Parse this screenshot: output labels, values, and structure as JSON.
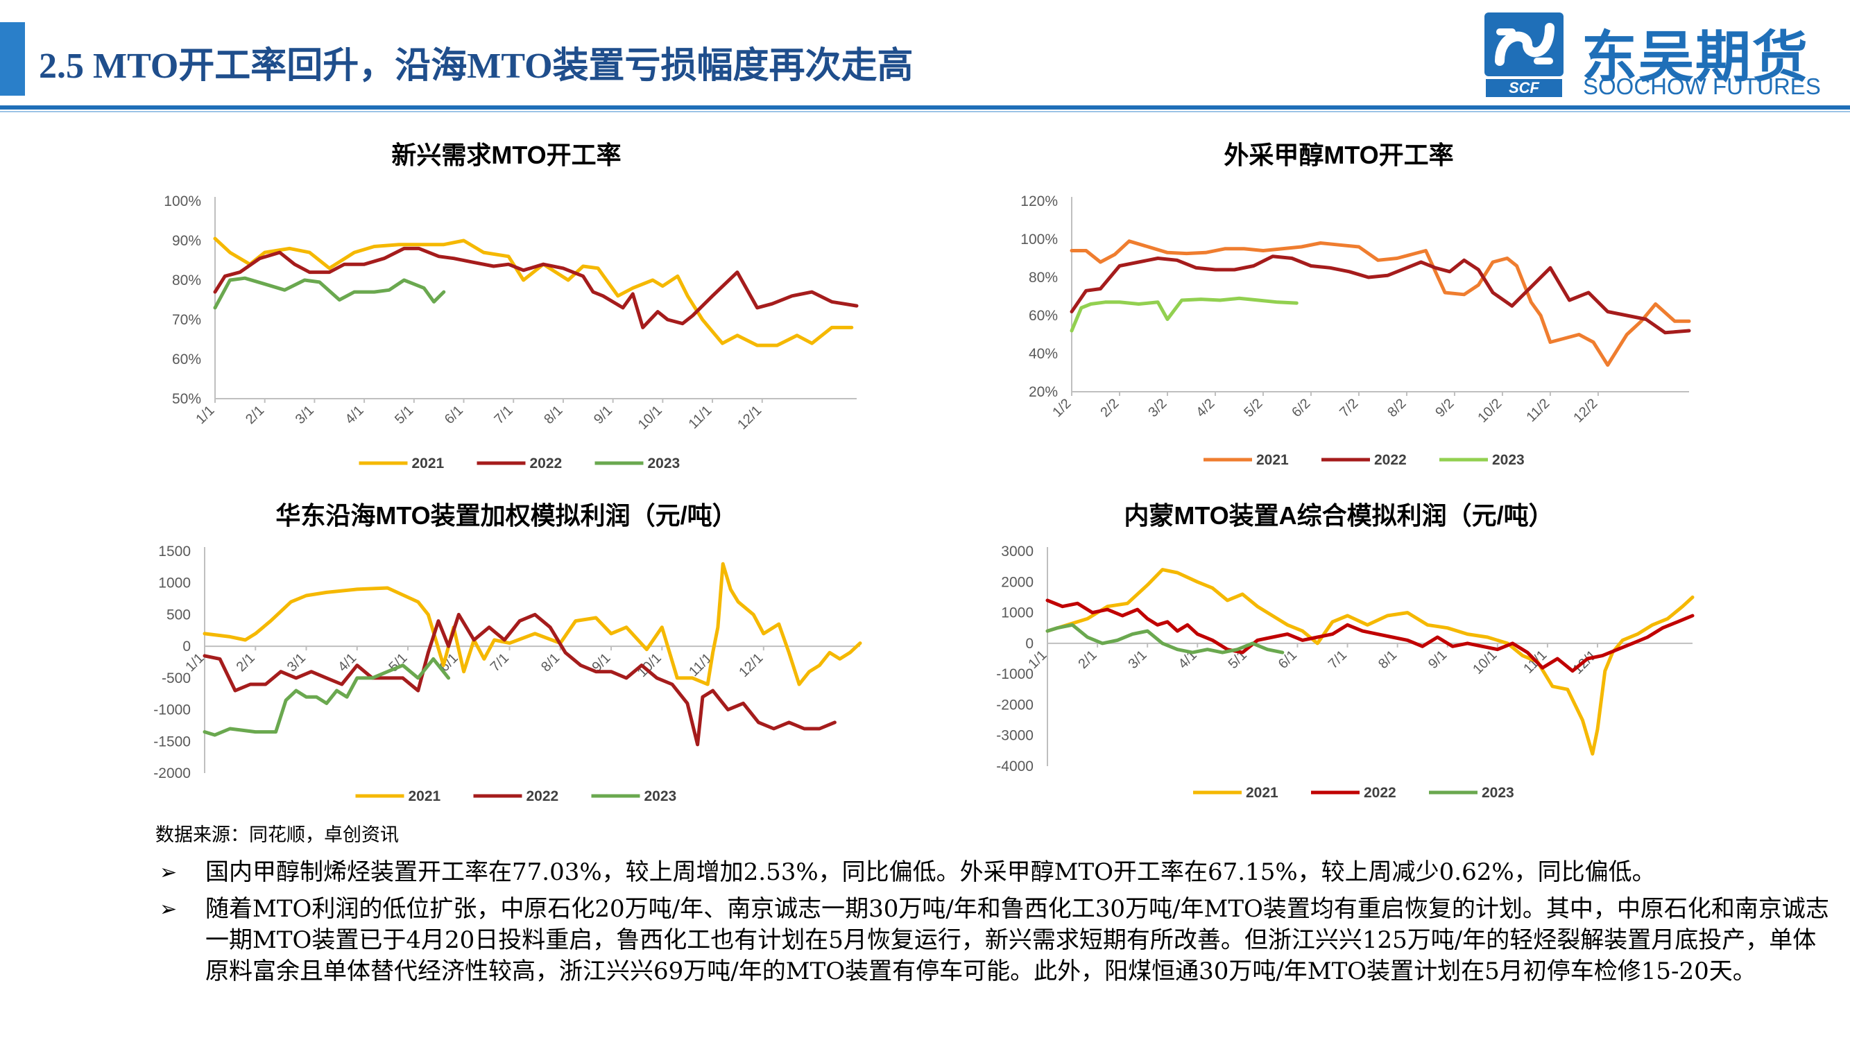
{
  "header": {
    "title": "2.5 MTO开工率回升，沿海MTO装置亏损幅度再次走高",
    "logo_cn": "东吴期货",
    "logo_en": "SOOCHOW FUTURES",
    "logo_mark": "SCF",
    "accent_color": "#1f6fb8"
  },
  "source_note": "数据来源：同花顺，卓创资讯",
  "bullets": [
    "国内甲醇制烯烃装置开工率在77.03%，较上周增加2.53%，同比偏低。外采甲醇MTO开工率在67.15%，较上周减少0.62%，同比偏低。",
    "随着MTO利润的低位扩张，中原石化20万吨/年、南京诚志一期30万吨/年和鲁西化工30万吨/年MTO装置均有重启恢复的计划。其中，中原石化和南京诚志一期MTO装置已于4月20日投料重启，鲁西化工也有计划在5月恢复运行，新兴需求短期有所改善。但浙江兴兴125万吨/年的轻烃裂解装置月底投产，单体原料富余且单体替代经济性较高，浙江兴兴69万吨/年的MTO装置有停车可能。此外，阳煤恒通30万吨/年MTO装置计划在5月初停车检修15-20天。"
  ],
  "chart_data": [
    {
      "type": "line",
      "title": "新兴需求MTO开工率",
      "x_ticks": [
        "1/1",
        "2/1",
        "3/1",
        "4/1",
        "5/1",
        "6/1",
        "7/1",
        "8/1",
        "9/1",
        "10/1",
        "11/1",
        "12/1"
      ],
      "y_ticks": [
        "50%",
        "60%",
        "70%",
        "80%",
        "90%",
        "100%"
      ],
      "ylim": [
        50,
        100
      ],
      "xlim": [
        0,
        12.9
      ],
      "grid": false,
      "legend_position": "bottom",
      "series": [
        {
          "name": "2021",
          "color": "#f5b800",
          "x": [
            0,
            0.3,
            0.7,
            1.0,
            1.5,
            1.9,
            2.3,
            2.8,
            3.2,
            3.7,
            4.3,
            4.6,
            5.0,
            5.4,
            5.9,
            6.2,
            6.6,
            7.1,
            7.4,
            7.7,
            8.1,
            8.4,
            8.8,
            9.0,
            9.3,
            9.5,
            9.8,
            10.2,
            10.5,
            10.9,
            11.3,
            11.7,
            12.0,
            12.4,
            12.8
          ],
          "y": [
            90.5,
            87,
            84,
            87,
            88,
            87,
            83,
            87,
            88.5,
            89,
            89,
            89,
            90,
            87,
            86,
            80,
            84,
            80,
            83.5,
            83,
            76,
            78,
            80,
            78.5,
            81,
            76,
            70,
            64,
            66,
            63.5,
            63.5,
            66,
            64,
            68,
            68
          ]
        },
        {
          "name": "2022",
          "color": "#a51c1c",
          "x": [
            0,
            0.2,
            0.5,
            0.9,
            1.3,
            1.6,
            1.9,
            2.3,
            2.6,
            3.0,
            3.4,
            3.8,
            4.1,
            4.5,
            4.8,
            5.2,
            5.6,
            5.9,
            6.2,
            6.6,
            7.0,
            7.4,
            7.6,
            7.8,
            8.2,
            8.4,
            8.6,
            8.9,
            9.1,
            9.4,
            9.6,
            10.0,
            10.5,
            10.9,
            11.2,
            11.6,
            12.0,
            12.4,
            12.9
          ],
          "y": [
            77,
            81,
            82,
            85.5,
            87,
            84,
            82,
            82,
            84,
            84,
            85.5,
            88,
            88,
            86,
            85.5,
            84.5,
            83.5,
            84,
            82.5,
            84,
            83,
            81,
            77,
            76,
            73,
            76.5,
            68,
            72,
            70,
            69,
            71,
            76,
            82,
            73,
            74,
            76,
            77,
            74.5,
            73.5
          ]
        },
        {
          "name": "2023",
          "color": "#6aa84f",
          "x": [
            0,
            0.3,
            0.6,
            1.0,
            1.4,
            1.8,
            2.1,
            2.5,
            2.8,
            3.2,
            3.5,
            3.8,
            4.0,
            4.2,
            4.4,
            4.6
          ],
          "y": [
            73,
            80,
            80.5,
            79,
            77.5,
            80,
            79.5,
            75,
            77,
            77,
            77.5,
            80,
            79,
            78,
            74.5,
            77
          ]
        }
      ]
    },
    {
      "type": "line",
      "title": "外采甲醇MTO开工率",
      "x_ticks": [
        "1/2",
        "2/2",
        "3/2",
        "4/2",
        "5/2",
        "6/2",
        "7/2",
        "8/2",
        "9/2",
        "10/2",
        "11/2",
        "12/2"
      ],
      "y_ticks": [
        "20%",
        "40%",
        "60%",
        "80%",
        "100%",
        "120%"
      ],
      "ylim": [
        20,
        120
      ],
      "xlim": [
        0,
        12.9
      ],
      "grid": false,
      "legend_position": "bottom",
      "series": [
        {
          "name": "2021",
          "color": "#ef7d2f",
          "x": [
            0,
            0.3,
            0.6,
            0.9,
            1.2,
            1.6,
            2.0,
            2.4,
            2.8,
            3.2,
            3.6,
            4.0,
            4.4,
            4.8,
            5.2,
            5.6,
            6.0,
            6.4,
            6.8,
            7.1,
            7.4,
            7.8,
            8.2,
            8.5,
            8.8,
            9.1,
            9.3,
            9.6,
            9.8,
            10.0,
            10.3,
            10.6,
            10.9,
            11.2,
            11.6,
            11.9,
            12.2,
            12.6,
            12.9
          ],
          "y": [
            94,
            94,
            88,
            92,
            99,
            96,
            93,
            92.5,
            93,
            95,
            95,
            94,
            95,
            96,
            98,
            97,
            96,
            89,
            90,
            92,
            94,
            72,
            71,
            76,
            88,
            90,
            86,
            67,
            60,
            46,
            48,
            50,
            46,
            34,
            50,
            57,
            66,
            57,
            57
          ]
        },
        {
          "name": "2022",
          "color": "#a51c1c",
          "x": [
            0,
            0.3,
            0.6,
            1.0,
            1.4,
            1.8,
            2.2,
            2.6,
            3.0,
            3.4,
            3.8,
            4.2,
            4.6,
            5.0,
            5.4,
            5.8,
            6.2,
            6.6,
            7.0,
            7.3,
            7.6,
            7.9,
            8.2,
            8.5,
            8.8,
            9.2,
            9.6,
            10.0,
            10.4,
            10.8,
            11.2,
            11.6,
            12.0,
            12.4,
            12.9
          ],
          "y": [
            62,
            73,
            74,
            86,
            88,
            90,
            89,
            85,
            84,
            84,
            86,
            91,
            90,
            86,
            85,
            83,
            80,
            81,
            85,
            88,
            85,
            83,
            89,
            84,
            72,
            65,
            75,
            85,
            68,
            72,
            62,
            60,
            58,
            51,
            52
          ]
        },
        {
          "name": "2023",
          "color": "#92d050",
          "x": [
            0,
            0.2,
            0.4,
            0.7,
            1.0,
            1.4,
            1.8,
            2.0,
            2.3,
            2.7,
            3.1,
            3.5,
            3.9,
            4.3,
            4.7
          ],
          "y": [
            52,
            64,
            66,
            67,
            67,
            66,
            67,
            58,
            68,
            68.5,
            68,
            69,
            68,
            67,
            66.5
          ]
        }
      ]
    },
    {
      "type": "line",
      "title": "华东沿海MTO装置加权模拟利润（元/吨）",
      "x_ticks": [
        "1/1",
        "2/1",
        "3/1",
        "4/1",
        "5/1",
        "6/1",
        "7/1",
        "8/1",
        "9/1",
        "10/1",
        "11/1",
        "12/1"
      ],
      "y_ticks": [
        "-2000",
        "-1500",
        "-1000",
        "-500",
        "0",
        "500",
        "1000",
        "1500"
      ],
      "ylim": [
        -2000,
        1500
      ],
      "xlim": [
        0,
        12.9
      ],
      "grid": false,
      "legend_position": "bottom",
      "series": [
        {
          "name": "2021",
          "color": "#f5b800",
          "x": [
            0,
            0.5,
            0.8,
            1.0,
            1.3,
            1.7,
            2.0,
            2.4,
            3.0,
            3.6,
            4.2,
            4.4,
            4.7,
            4.9,
            5.1,
            5.3,
            5.5,
            5.7,
            6.0,
            6.5,
            7.0,
            7.3,
            7.7,
            8.0,
            8.3,
            8.7,
            9.0,
            9.3,
            9.6,
            9.9,
            10.0,
            10.1,
            10.2,
            10.35,
            10.5,
            10.8,
            11.0,
            11.3,
            11.5,
            11.7,
            11.9,
            12.1,
            12.3,
            12.5,
            12.7,
            12.9
          ],
          "y": [
            200,
            150,
            100,
            200,
            400,
            700,
            800,
            850,
            900,
            920,
            700,
            500,
            -300,
            300,
            -400,
            100,
            -200,
            100,
            50,
            200,
            50,
            400,
            450,
            200,
            300,
            -50,
            300,
            -500,
            -500,
            -600,
            -100,
            300,
            1300,
            900,
            700,
            500,
            200,
            350,
            -100,
            -600,
            -400,
            -300,
            -100,
            -200,
            -100,
            50
          ]
        },
        {
          "name": "2022",
          "color": "#a51c1c",
          "x": [
            0,
            0.3,
            0.6,
            0.9,
            1.2,
            1.5,
            1.8,
            2.1,
            2.4,
            2.7,
            3.0,
            3.3,
            3.6,
            3.9,
            4.2,
            4.4,
            4.6,
            4.8,
            5.0,
            5.3,
            5.6,
            5.9,
            6.2,
            6.5,
            6.8,
            7.1,
            7.4,
            7.7,
            8.0,
            8.3,
            8.6,
            8.9,
            9.2,
            9.5,
            9.7,
            9.8,
            10.0,
            10.3,
            10.6,
            10.9,
            11.2,
            11.5,
            11.8,
            12.1,
            12.4
          ],
          "y": [
            -150,
            -200,
            -700,
            -600,
            -600,
            -400,
            -500,
            -400,
            -500,
            -600,
            -300,
            -500,
            -500,
            -500,
            -700,
            -100,
            400,
            0,
            500,
            100,
            300,
            100,
            400,
            500,
            300,
            -100,
            -300,
            -400,
            -400,
            -500,
            -300,
            -500,
            -600,
            -900,
            -1550,
            -800,
            -700,
            -1000,
            -900,
            -1200,
            -1300,
            -1200,
            -1300,
            -1300,
            -1200
          ]
        },
        {
          "name": "2023",
          "color": "#6aa84f",
          "x": [
            0,
            0.2,
            0.5,
            1.0,
            1.4,
            1.6,
            1.8,
            2.0,
            2.2,
            2.4,
            2.6,
            2.8,
            3.0,
            3.3,
            3.6,
            3.9,
            4.2,
            4.5,
            4.8
          ],
          "y": [
            -1350,
            -1400,
            -1300,
            -1350,
            -1350,
            -850,
            -700,
            -800,
            -800,
            -900,
            -700,
            -800,
            -500,
            -500,
            -400,
            -300,
            -500,
            -200,
            -500
          ]
        }
      ]
    },
    {
      "type": "line",
      "title": "内蒙MTO装置A综合模拟利润（元/吨）",
      "x_ticks": [
        "1/1",
        "2/1",
        "3/1",
        "4/1",
        "5/1",
        "6/1",
        "7/1",
        "8/1",
        "9/1",
        "10/1",
        "11/1",
        "12/1"
      ],
      "y_ticks": [
        "-4000",
        "-3000",
        "-2000",
        "-1000",
        "0",
        "1000",
        "2000",
        "3000"
      ],
      "ylim": [
        -4000,
        3000
      ],
      "xlim": [
        0,
        12.9
      ],
      "grid": false,
      "legend_position": "bottom",
      "series": [
        {
          "name": "2021",
          "color": "#f5b800",
          "x": [
            0,
            0.4,
            0.8,
            1.2,
            1.6,
            2.0,
            2.3,
            2.6,
            3.0,
            3.3,
            3.6,
            3.9,
            4.2,
            4.5,
            4.8,
            5.1,
            5.4,
            5.7,
            6.0,
            6.4,
            6.8,
            7.2,
            7.6,
            8.0,
            8.4,
            8.8,
            9.2,
            9.5,
            9.8,
            10.1,
            10.4,
            10.7,
            10.9,
            11.0,
            11.15,
            11.3,
            11.5,
            11.8,
            12.1,
            12.4,
            12.7,
            12.9
          ],
          "y": [
            400,
            600,
            800,
            1200,
            1300,
            1900,
            2400,
            2300,
            2000,
            1800,
            1400,
            1600,
            1200,
            900,
            600,
            400,
            0,
            700,
            900,
            600,
            900,
            1000,
            600,
            500,
            300,
            200,
            0,
            -400,
            -600,
            -1400,
            -1500,
            -2500,
            -3600,
            -2800,
            -900,
            -300,
            100,
            300,
            600,
            800,
            1200,
            1500
          ]
        },
        {
          "name": "2022",
          "color": "#c00000",
          "x": [
            0,
            0.3,
            0.6,
            0.9,
            1.2,
            1.5,
            1.8,
            2.0,
            2.2,
            2.4,
            2.6,
            2.8,
            3.0,
            3.3,
            3.6,
            3.9,
            4.2,
            4.5,
            4.8,
            5.1,
            5.4,
            5.7,
            6.0,
            6.3,
            6.6,
            6.9,
            7.2,
            7.5,
            7.8,
            8.1,
            8.4,
            8.7,
            9.0,
            9.3,
            9.6,
            9.9,
            10.2,
            10.5,
            10.8,
            11.1,
            11.4,
            11.7,
            12.0,
            12.3,
            12.6,
            12.9
          ],
          "y": [
            1400,
            1200,
            1300,
            1000,
            1100,
            900,
            1100,
            800,
            600,
            700,
            400,
            600,
            300,
            100,
            -200,
            -300,
            100,
            200,
            300,
            100,
            200,
            300,
            600,
            400,
            300,
            200,
            100,
            -100,
            200,
            -100,
            0,
            -100,
            -200,
            0,
            -300,
            -800,
            -500,
            -900,
            -500,
            -400,
            -200,
            0,
            200,
            500,
            700,
            900
          ]
        },
        {
          "name": "2023",
          "color": "#6aa84f",
          "x": [
            0,
            0.2,
            0.5,
            0.8,
            1.1,
            1.4,
            1.7,
            2.0,
            2.3,
            2.6,
            2.9,
            3.2,
            3.5,
            3.8,
            4.1,
            4.4,
            4.7
          ],
          "y": [
            400,
            500,
            600,
            200,
            0,
            100,
            300,
            400,
            0,
            -200,
            -300,
            -200,
            -300,
            -200,
            0,
            -200,
            -300
          ]
        }
      ]
    }
  ]
}
